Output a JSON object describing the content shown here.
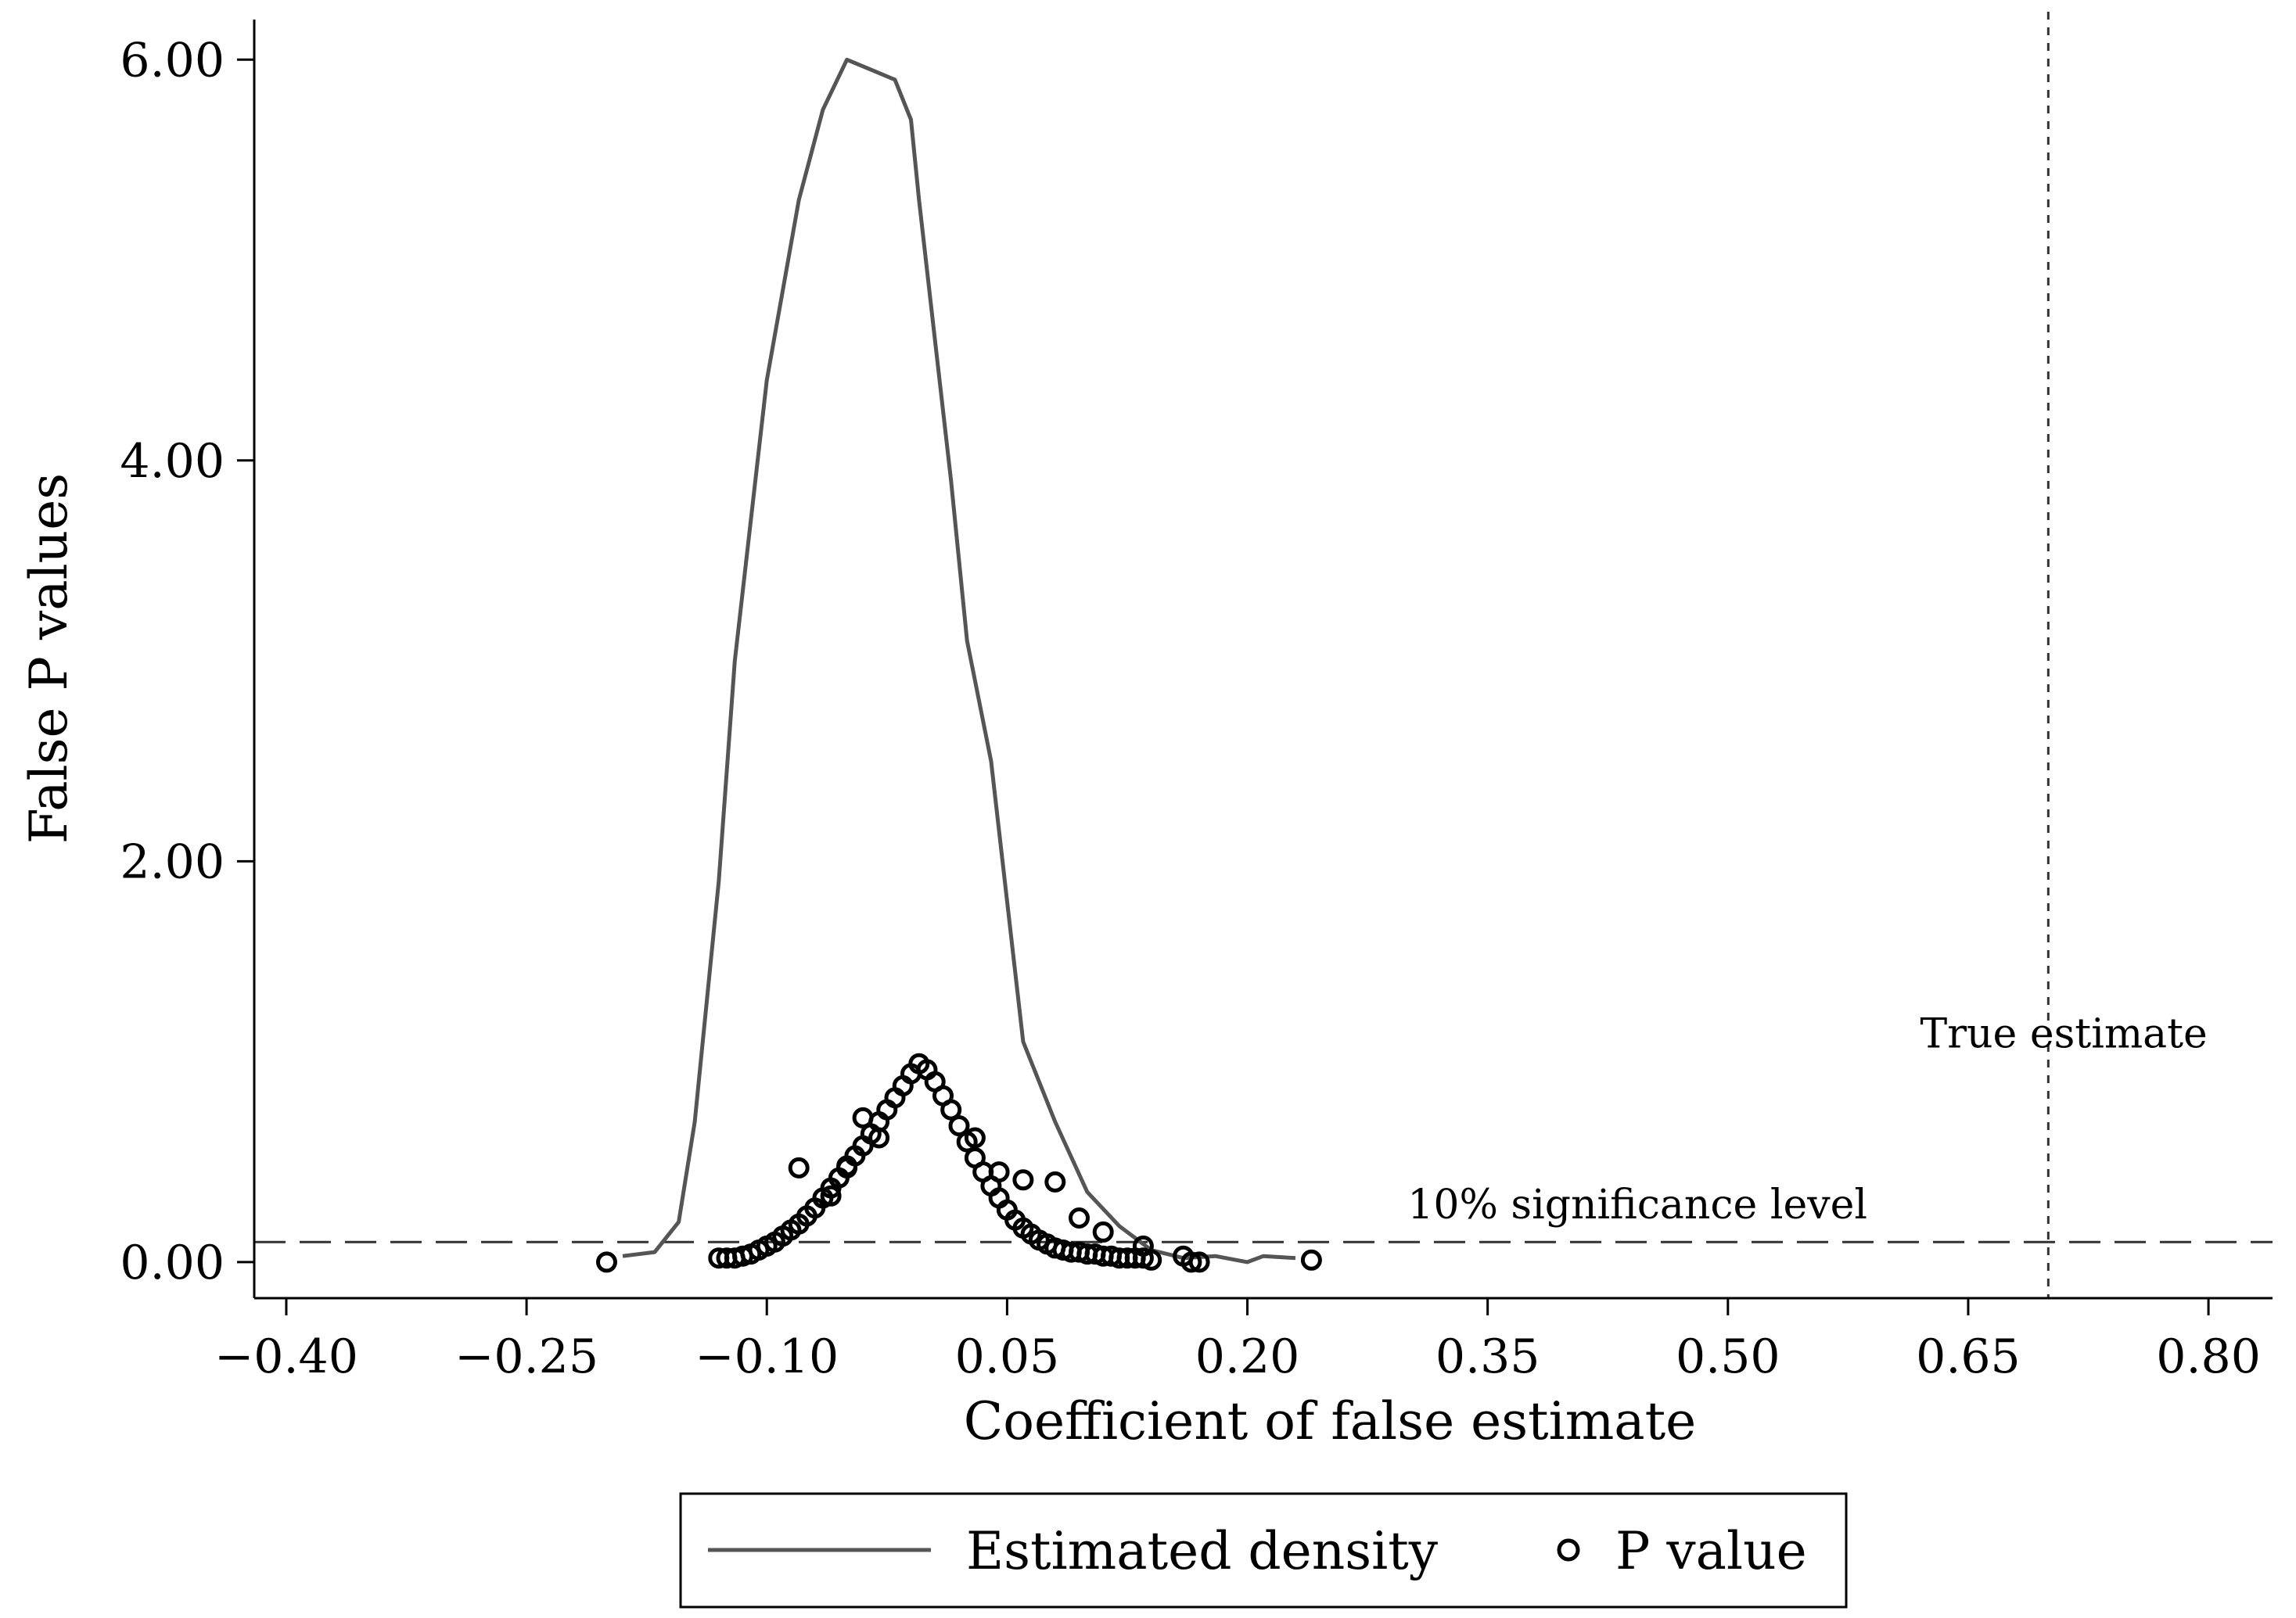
{
  "chart_data": {
    "type": "line",
    "xlabel": "Coefficient of false estimate",
    "ylabel": "False P values",
    "xlim": [
      -0.42,
      0.84
    ],
    "ylim": [
      -0.18,
      6.2
    ],
    "x_ticks": [
      "−0.40",
      "−0.25",
      "−0.10",
      "0.05",
      "0.20",
      "0.35",
      "0.50",
      "0.65",
      "0.80"
    ],
    "y_ticks": [
      "0.00",
      "2.00",
      "4.00",
      "6.00"
    ],
    "x_tick_values": [
      -0.4,
      -0.25,
      -0.1,
      0.05,
      0.2,
      0.35,
      0.5,
      0.65,
      0.8
    ],
    "y_tick_values": [
      0,
      2,
      4,
      6
    ],
    "annotations": {
      "significance_label": "10% significance level",
      "significance_value": 0.1,
      "true_label": "True estimate",
      "true_value": 0.7
    },
    "legend": {
      "placement": "bottom",
      "density_label": "Estimated density",
      "pvalue_label": "P value"
    },
    "colors": {
      "density": "#555555",
      "pvalue": "#000000",
      "reference": "#333333"
    },
    "series": [
      {
        "name": "Estimated density",
        "kind": "line",
        "x": [
          -0.19,
          -0.17,
          -0.155,
          -0.145,
          -0.13,
          -0.12,
          -0.1,
          -0.08,
          -0.065,
          -0.05,
          -0.035,
          -0.02,
          -0.01,
          -0.005,
          0.005,
          0.015,
          0.025,
          0.04,
          0.06,
          0.08,
          0.1,
          0.12,
          0.14,
          0.16,
          0.18,
          0.2,
          0.21,
          0.23
        ],
        "y": [
          0.03,
          0.05,
          0.2,
          0.7,
          1.9,
          3.0,
          4.4,
          5.3,
          5.75,
          6.0,
          5.95,
          5.9,
          5.7,
          5.3,
          4.6,
          3.9,
          3.1,
          2.5,
          1.1,
          0.7,
          0.35,
          0.18,
          0.06,
          0.02,
          0.03,
          0.0,
          0.03,
          0.02
        ]
      },
      {
        "name": "P value",
        "kind": "scatter",
        "x": [
          -0.2,
          -0.13,
          -0.125,
          -0.12,
          -0.115,
          -0.11,
          -0.105,
          -0.1,
          -0.095,
          -0.09,
          -0.085,
          -0.08,
          -0.075,
          -0.07,
          -0.065,
          -0.06,
          -0.055,
          -0.05,
          -0.045,
          -0.04,
          -0.035,
          -0.03,
          -0.025,
          -0.02,
          -0.015,
          -0.01,
          -0.005,
          0.0,
          0.005,
          0.01,
          0.015,
          0.02,
          0.025,
          0.03,
          0.035,
          0.04,
          0.045,
          0.05,
          0.055,
          0.06,
          0.065,
          0.07,
          0.075,
          0.08,
          0.085,
          0.09,
          0.095,
          0.1,
          0.105,
          0.11,
          0.115,
          0.12,
          0.125,
          0.13,
          0.135,
          0.14,
          0.16,
          0.165,
          0.17,
          0.24,
          -0.08,
          -0.06,
          -0.05,
          -0.04,
          -0.03,
          0.03,
          0.045,
          0.06,
          0.08,
          0.095,
          0.11,
          0.135
        ],
        "y": [
          0.0,
          0.02,
          0.02,
          0.02,
          0.03,
          0.04,
          0.06,
          0.08,
          0.1,
          0.13,
          0.16,
          0.19,
          0.23,
          0.27,
          0.32,
          0.37,
          0.42,
          0.47,
          0.53,
          0.58,
          0.64,
          0.7,
          0.76,
          0.82,
          0.88,
          0.94,
          0.99,
          0.96,
          0.9,
          0.83,
          0.76,
          0.68,
          0.6,
          0.52,
          0.45,
          0.38,
          0.32,
          0.26,
          0.21,
          0.17,
          0.14,
          0.11,
          0.09,
          0.07,
          0.06,
          0.05,
          0.05,
          0.04,
          0.04,
          0.03,
          0.03,
          0.02,
          0.02,
          0.02,
          0.02,
          0.01,
          0.03,
          0.0,
          0.0,
          0.01,
          0.47,
          0.33,
          0.48,
          0.72,
          0.62,
          0.62,
          0.45,
          0.41,
          0.4,
          0.22,
          0.15,
          0.08
        ]
      }
    ]
  }
}
